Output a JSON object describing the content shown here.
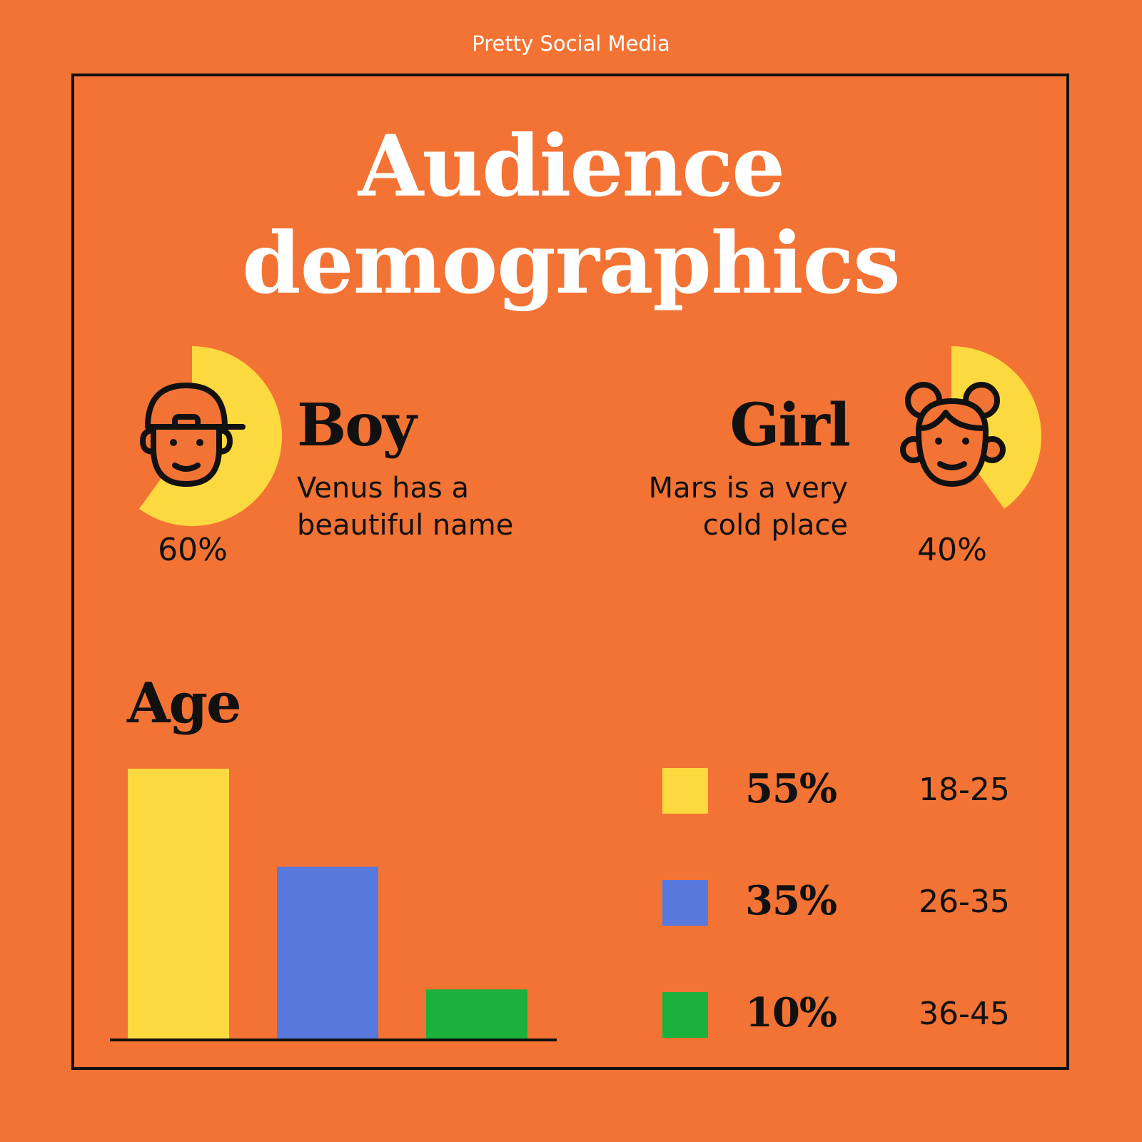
{
  "brand": "Pretty Social Media",
  "title": {
    "line1": "Audience",
    "line2": "demographics"
  },
  "gender": {
    "boy": {
      "label": "Boy",
      "desc_line1": "Venus has a",
      "desc_line2": "beautiful name",
      "percent_label": "60%",
      "value": 60,
      "icon": "boy-face-icon"
    },
    "girl": {
      "label": "Girl",
      "desc_line1": "Mars is a very",
      "desc_line2": "cold place",
      "percent_label": "40%",
      "value": 40,
      "icon": "girl-face-icon"
    }
  },
  "age": {
    "heading": "Age",
    "legend": [
      {
        "percent": "55%",
        "range": "18-25",
        "color": "#fcda3f"
      },
      {
        "percent": "35%",
        "range": "26-35",
        "color": "#5778dc"
      },
      {
        "percent": "10%",
        "range": "36-45",
        "color": "#1bb13c"
      }
    ]
  },
  "colors": {
    "background": "#f37335",
    "yellow": "#fcda3f",
    "blue": "#5778dc",
    "green": "#1bb13c",
    "ink": "#111111"
  },
  "chart_data": {
    "type": "bar",
    "title": "Age",
    "categories": [
      "18-25",
      "26-35",
      "36-45"
    ],
    "values": [
      55,
      35,
      10
    ],
    "colors": [
      "#fcda3f",
      "#5778dc",
      "#1bb13c"
    ],
    "ylim": [
      0,
      55
    ]
  }
}
